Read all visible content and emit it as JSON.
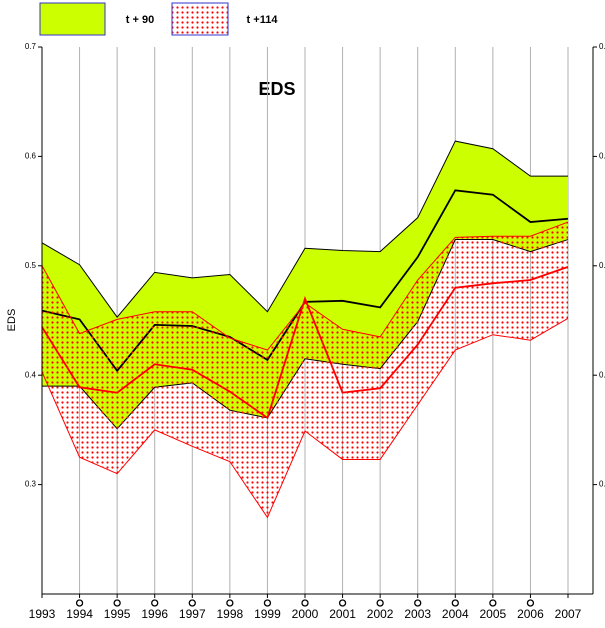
{
  "chart_data": {
    "type": "band",
    "title": "EDS",
    "y_label": "EDS",
    "categories": [
      "1993",
      "1994",
      "1995",
      "1996",
      "1997",
      "1998",
      "1999",
      "2000",
      "2001",
      "2002",
      "2003",
      "2004",
      "2005",
      "2006",
      "2007"
    ],
    "ylim": [
      0.2,
      0.7
    ],
    "yticks": [
      0.3,
      0.4,
      0.5,
      0.6,
      0.7
    ],
    "series": [
      {
        "name": "t + 90",
        "color": "#ccff00",
        "line_color": "#000000",
        "fill": "solid",
        "upper": [
          0.521,
          0.501,
          0.453,
          0.494,
          0.489,
          0.492,
          0.458,
          0.516,
          0.514,
          0.513,
          0.544,
          0.614,
          0.607,
          0.582,
          0.582
        ],
        "values": [
          0.459,
          0.451,
          0.404,
          0.446,
          0.445,
          0.435,
          0.414,
          0.467,
          0.468,
          0.462,
          0.508,
          0.569,
          0.565,
          0.54,
          0.543
        ],
        "lower": [
          0.39,
          0.39,
          0.351,
          0.389,
          0.393,
          0.368,
          0.361,
          0.415,
          0.41,
          0.406,
          0.449,
          0.524,
          0.524,
          0.513,
          0.524
        ]
      },
      {
        "name": "t +114",
        "color": "#ff0000",
        "line_color": "#ff0000",
        "fill": "dots",
        "upper": [
          0.5,
          0.438,
          0.451,
          0.458,
          0.458,
          0.434,
          0.423,
          0.466,
          0.442,
          0.435,
          0.487,
          0.526,
          0.527,
          0.527,
          0.54
        ],
        "values": [
          0.444,
          0.389,
          0.384,
          0.41,
          0.405,
          0.385,
          0.361,
          0.47,
          0.384,
          0.388,
          0.428,
          0.48,
          0.484,
          0.487,
          0.499
        ],
        "lower": [
          0.403,
          0.325,
          0.31,
          0.35,
          0.335,
          0.321,
          0.27,
          0.349,
          0.323,
          0.323,
          0.373,
          0.423,
          0.437,
          0.432,
          0.452
        ]
      }
    ]
  }
}
